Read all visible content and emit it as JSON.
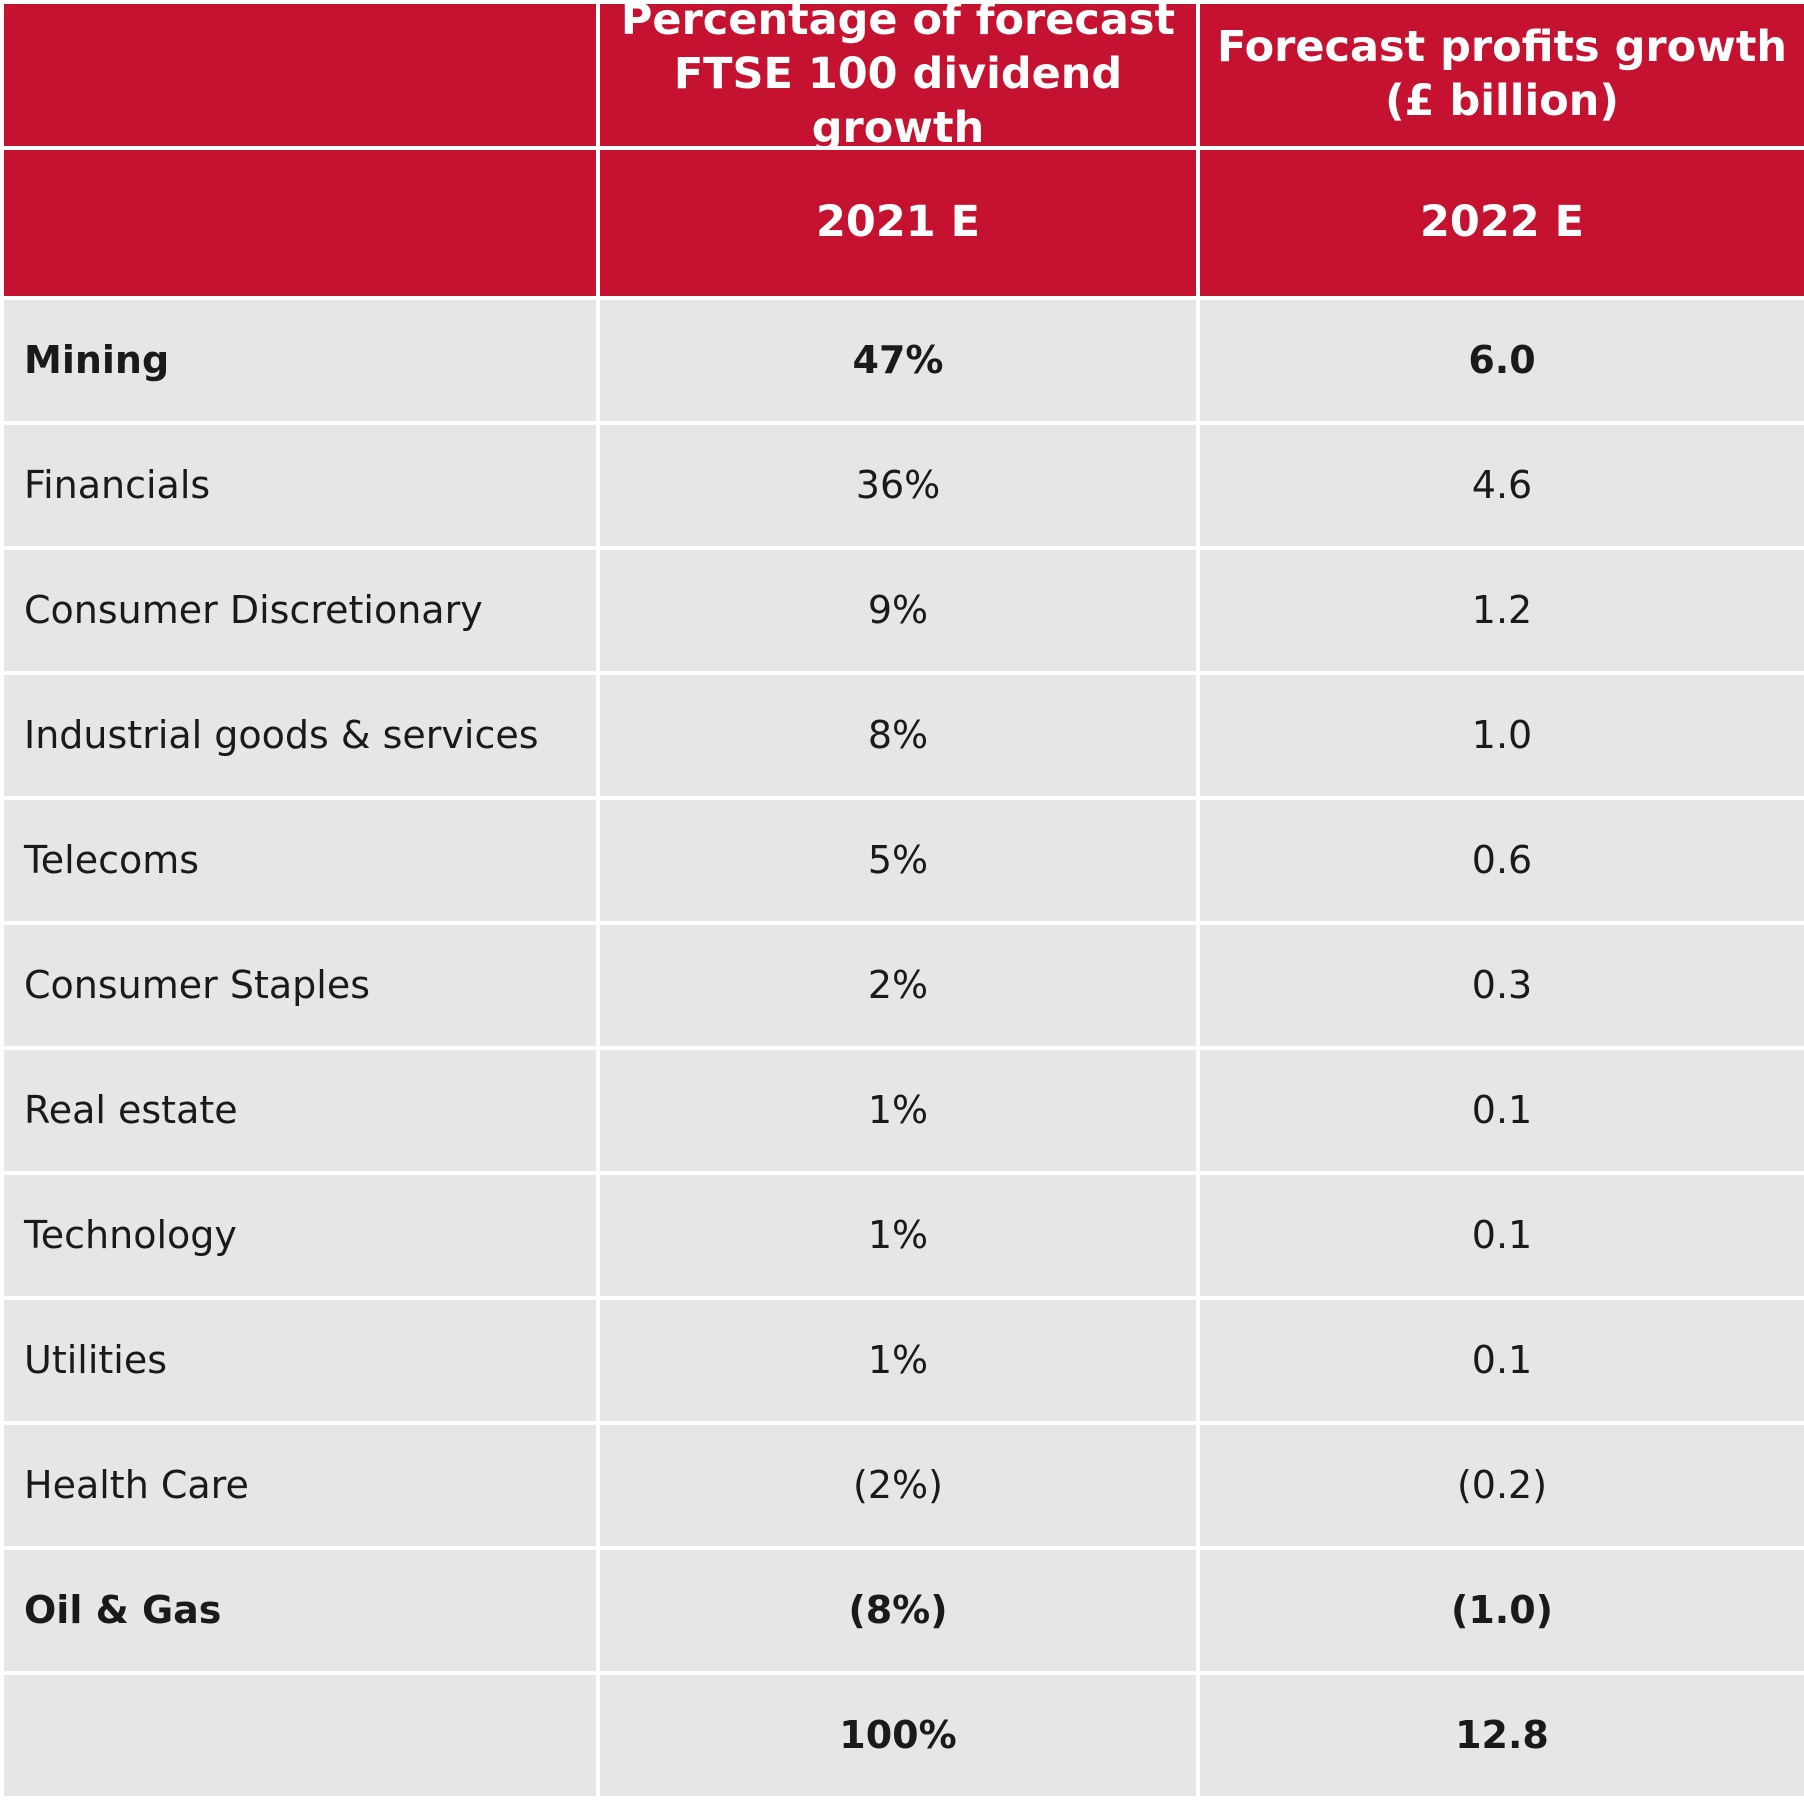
{
  "header": {
    "col1_line1": "Percentage of forecast",
    "col1_line2": "FTSE 100 dividend growth",
    "col2_line1": "Forecast profits growth",
    "col2_line2": "(£ billion)",
    "col1_year": "2021 E",
    "col2_year": "2022 E"
  },
  "rows": [
    {
      "sector": "Mining",
      "pct": "47%",
      "profit": "6.0"
    },
    {
      "sector": "Financials",
      "pct": "36%",
      "profit": "4.6"
    },
    {
      "sector": "Consumer Discretionary",
      "pct": "9%",
      "profit": "1.2"
    },
    {
      "sector": "Industrial goods & services",
      "pct": "8%",
      "profit": "1.0"
    },
    {
      "sector": "Telecoms",
      "pct": "5%",
      "profit": "0.6"
    },
    {
      "sector": "Consumer Staples",
      "pct": "2%",
      "profit": "0.3"
    },
    {
      "sector": "Real estate",
      "pct": "1%",
      "profit": "0.1"
    },
    {
      "sector": "Technology",
      "pct": "1%",
      "profit": "0.1"
    },
    {
      "sector": "Utilities",
      "pct": "1%",
      "profit": "0.1"
    },
    {
      "sector": "Health Care",
      "pct": "(2%)",
      "profit": "(0.2)"
    },
    {
      "sector": "Oil & Gas",
      "pct": "(8%)",
      "profit": "(1.0)"
    }
  ],
  "total": {
    "sector": "",
    "pct": "100%",
    "profit": "12.8"
  },
  "colors": {
    "header_bg": "#c41230",
    "body_bg": "#e6e6e6",
    "grid_line": "#ffffff"
  }
}
